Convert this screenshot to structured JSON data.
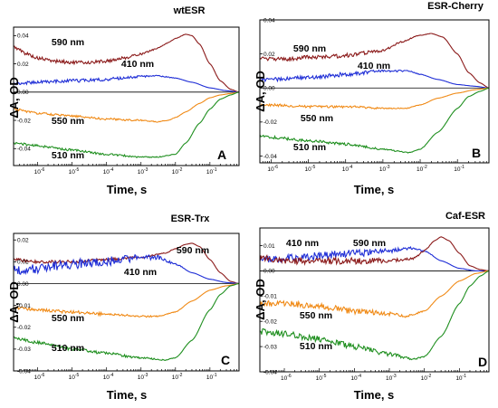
{
  "chart_data": [
    {
      "type": "line",
      "title": "wtESR",
      "panel_letter": "A",
      "xlabel": "Time, s",
      "ylabel": "ΔA, OD",
      "x_scale": "log",
      "xlim": [
        2e-07,
        0.7
      ],
      "ylim": [
        -0.052,
        0.046
      ],
      "yticks": [
        -0.04,
        -0.02,
        0.0,
        0.02,
        0.04
      ],
      "ytick_labels": [
        "-0.04",
        "-0.02",
        "0.00",
        "0.02",
        "0.04"
      ],
      "xtick_labels": [
        "10-6",
        "10-5",
        "10-4",
        "10-3",
        "10-2",
        "10-1"
      ],
      "series": [
        {
          "name": "590 nm",
          "color": "#8b1a1a",
          "noise": 0.0012,
          "x": [
            2e-07,
            5e-07,
            1e-06,
            3e-06,
            1e-05,
            3e-05,
            0.0001,
            0.0003,
            0.001,
            0.003,
            0.006,
            0.01,
            0.02,
            0.03,
            0.05,
            0.1,
            0.2,
            0.4,
            0.7
          ],
          "values": [
            0.032,
            0.027,
            0.024,
            0.022,
            0.021,
            0.021,
            0.022,
            0.024,
            0.027,
            0.031,
            0.035,
            0.038,
            0.041,
            0.04,
            0.034,
            0.02,
            0.008,
            0.002,
            0.0
          ]
        },
        {
          "name": "410 nm",
          "color": "#1f2ed6",
          "noise": 0.0012,
          "x": [
            2e-07,
            1e-06,
            1e-05,
            0.0001,
            0.001,
            0.003,
            0.01,
            0.03,
            0.1,
            0.3,
            0.7
          ],
          "values": [
            0.006,
            0.007,
            0.008,
            0.009,
            0.011,
            0.0115,
            0.01,
            0.007,
            0.003,
            0.001,
            0.0
          ]
        },
        {
          "name": "550 nm",
          "color": "#f08a16",
          "noise": 0.0008,
          "x": [
            2e-07,
            1e-06,
            1e-05,
            0.0001,
            0.001,
            0.003,
            0.006,
            0.01,
            0.02,
            0.05,
            0.1,
            0.2,
            0.4,
            0.7
          ],
          "values": [
            -0.012,
            -0.015,
            -0.017,
            -0.019,
            -0.02,
            -0.021,
            -0.02,
            -0.018,
            -0.014,
            -0.008,
            -0.004,
            -0.002,
            -0.001,
            0.0
          ]
        },
        {
          "name": "510 nm",
          "color": "#1f8f1f",
          "noise": 0.0008,
          "x": [
            2e-07,
            1e-06,
            1e-05,
            0.0001,
            0.001,
            0.003,
            0.01,
            0.02,
            0.05,
            0.1,
            0.2,
            0.4,
            0.7
          ],
          "values": [
            -0.036,
            -0.038,
            -0.041,
            -0.044,
            -0.046,
            -0.046,
            -0.044,
            -0.036,
            -0.022,
            -0.012,
            -0.005,
            -0.002,
            0.0
          ]
        }
      ]
    },
    {
      "type": "line",
      "title": "ESR-Cherry",
      "panel_letter": "B",
      "xlabel": "Time, s",
      "ylabel": "ΔA, OD",
      "x_scale": "log",
      "xlim": [
        5e-07,
        0.7
      ],
      "ylim": [
        -0.044,
        0.04
      ],
      "yticks": [
        -0.04,
        -0.02,
        0.0,
        0.02,
        0.04
      ],
      "ytick_labels": [
        "-0.04",
        "-0.02",
        "0.00",
        "0.02",
        "0.04"
      ],
      "xtick_labels": [
        "10-6",
        "10-5",
        "10-4",
        "10-3",
        "10-2",
        "10-1"
      ],
      "series": [
        {
          "name": "590 nm",
          "color": "#8b1a1a",
          "noise": 0.0012,
          "x": [
            5e-07,
            1e-06,
            3e-06,
            1e-05,
            0.0001,
            0.001,
            0.003,
            0.01,
            0.02,
            0.04,
            0.1,
            0.2,
            0.4,
            0.7
          ],
          "values": [
            0.017,
            0.017,
            0.017,
            0.018,
            0.019,
            0.022,
            0.027,
            0.031,
            0.032,
            0.03,
            0.02,
            0.009,
            0.003,
            0.0
          ]
        },
        {
          "name": "410 nm",
          "color": "#1f2ed6",
          "noise": 0.0012,
          "x": [
            5e-07,
            1e-06,
            1e-05,
            0.0001,
            0.001,
            0.005,
            0.01,
            0.03,
            0.1,
            0.3,
            0.7
          ],
          "values": [
            0.005,
            0.005,
            0.006,
            0.008,
            0.01,
            0.01,
            0.008,
            0.005,
            0.002,
            0.001,
            0.0
          ]
        },
        {
          "name": "550 nm",
          "color": "#f08a16",
          "noise": 0.0007,
          "x": [
            5e-07,
            1e-06,
            1e-05,
            0.0001,
            0.001,
            0.004,
            0.01,
            0.03,
            0.1,
            0.3,
            0.7
          ],
          "values": [
            -0.01,
            -0.01,
            -0.011,
            -0.011,
            -0.012,
            -0.012,
            -0.01,
            -0.006,
            -0.003,
            -0.001,
            0.0
          ]
        },
        {
          "name": "510 nm",
          "color": "#1f8f1f",
          "noise": 0.0008,
          "x": [
            5e-07,
            1e-06,
            1e-05,
            0.0001,
            0.001,
            0.005,
            0.01,
            0.03,
            0.1,
            0.2,
            0.4,
            0.7
          ],
          "values": [
            -0.028,
            -0.029,
            -0.031,
            -0.033,
            -0.036,
            -0.038,
            -0.036,
            -0.026,
            -0.012,
            -0.005,
            -0.002,
            0.0
          ]
        }
      ]
    },
    {
      "type": "line",
      "title": "ESR-Trx",
      "panel_letter": "C",
      "xlabel": "Time, s",
      "ylabel": "ΔA, OD",
      "x_scale": "log",
      "xlim": [
        2e-07,
        0.7
      ],
      "ylim": [
        -0.04,
        0.023
      ],
      "yticks": [
        -0.04,
        -0.03,
        -0.02,
        -0.01,
        0.0,
        0.01,
        0.02
      ],
      "ytick_labels": [
        "-0.04",
        "-0.03",
        "-0.02",
        "-0.01",
        "0.00",
        "0.01",
        "0.02"
      ],
      "xtick_labels": [
        "10-6",
        "10-5",
        "10-4",
        "10-3",
        "10-2",
        "10-1"
      ],
      "series": [
        {
          "name": "590 nm",
          "color": "#8b1a1a",
          "noise": 0.0007,
          "x": [
            2e-07,
            1e-06,
            1e-05,
            0.0001,
            0.001,
            0.005,
            0.01,
            0.02,
            0.03,
            0.05,
            0.1,
            0.2,
            0.4,
            0.7
          ],
          "values": [
            0.011,
            0.01,
            0.01,
            0.011,
            0.012,
            0.014,
            0.016,
            0.018,
            0.0185,
            0.017,
            0.011,
            0.005,
            0.001,
            0.0
          ]
        },
        {
          "name": "410 nm",
          "color": "#1f2ed6",
          "noise": 0.0022,
          "x": [
            2e-07,
            1e-06,
            1e-05,
            0.0001,
            0.001,
            0.003,
            0.01,
            0.03,
            0.1,
            0.3,
            0.7
          ],
          "values": [
            0.006,
            0.007,
            0.009,
            0.01,
            0.012,
            0.012,
            0.009,
            0.005,
            0.002,
            0.0005,
            0.0
          ]
        },
        {
          "name": "550 nm",
          "color": "#f08a16",
          "noise": 0.0007,
          "x": [
            2e-07,
            1e-06,
            1e-05,
            0.0001,
            0.001,
            0.003,
            0.01,
            0.03,
            0.1,
            0.3,
            0.7
          ],
          "values": [
            -0.011,
            -0.012,
            -0.013,
            -0.014,
            -0.015,
            -0.015,
            -0.013,
            -0.008,
            -0.003,
            -0.001,
            0.0
          ]
        },
        {
          "name": "510 nm",
          "color": "#1f8f1f",
          "noise": 0.0007,
          "x": [
            2e-07,
            1e-06,
            1e-05,
            0.0001,
            0.001,
            0.005,
            0.01,
            0.03,
            0.1,
            0.2,
            0.4,
            0.7
          ],
          "values": [
            -0.025,
            -0.027,
            -0.03,
            -0.032,
            -0.034,
            -0.035,
            -0.034,
            -0.026,
            -0.012,
            -0.005,
            -0.001,
            0.0
          ]
        }
      ]
    },
    {
      "type": "line",
      "title": "Caf-ESR",
      "panel_letter": "D",
      "xlabel": "Time, s",
      "ylabel": "ΔA, OD",
      "x_scale": "log",
      "xlim": [
        2e-07,
        0.7
      ],
      "ylim": [
        -0.04,
        0.017
      ],
      "yticks": [
        -0.04,
        -0.03,
        -0.02,
        -0.01,
        0.0,
        0.01
      ],
      "ytick_labels": [
        "-0.04",
        "-0.03",
        "-0.02",
        "-0.01",
        "0.00",
        "0.01"
      ],
      "xtick_labels": [
        "10-6",
        "10-5",
        "10-4",
        "10-3",
        "10-2",
        "10-1"
      ],
      "series": [
        {
          "name": "410 nm",
          "color": "#1f2ed6",
          "noise": 0.0015,
          "x": [
            2e-07,
            1e-06,
            1e-05,
            0.0001,
            0.001,
            0.004,
            0.01,
            0.03,
            0.1,
            0.3,
            0.7
          ],
          "values": [
            0.004,
            0.005,
            0.006,
            0.007,
            0.008,
            0.009,
            0.008,
            0.004,
            0.001,
            0.0,
            0.0
          ]
        },
        {
          "name": "590 nm",
          "color": "#8b1a1a",
          "noise": 0.0013,
          "x": [
            2e-07,
            1e-06,
            1e-05,
            0.0001,
            0.001,
            0.005,
            0.01,
            0.02,
            0.03,
            0.05,
            0.1,
            0.2,
            0.4,
            0.7
          ],
          "values": [
            0.005,
            0.004,
            0.004,
            0.004,
            0.004,
            0.005,
            0.008,
            0.012,
            0.0135,
            0.012,
            0.007,
            0.002,
            0.0005,
            0.0
          ]
        },
        {
          "name": "550 nm",
          "color": "#f08a16",
          "noise": 0.0012,
          "x": [
            2e-07,
            1e-06,
            1e-05,
            0.0001,
            0.001,
            0.003,
            0.01,
            0.03,
            0.1,
            0.3,
            0.7
          ],
          "values": [
            -0.013,
            -0.013,
            -0.014,
            -0.016,
            -0.017,
            -0.018,
            -0.016,
            -0.01,
            -0.004,
            -0.001,
            0.0
          ]
        },
        {
          "name": "510 nm",
          "color": "#1f8f1f",
          "noise": 0.0012,
          "x": [
            2e-07,
            1e-06,
            1e-05,
            0.0001,
            0.001,
            0.005,
            0.01,
            0.03,
            0.1,
            0.2,
            0.4,
            0.7
          ],
          "values": [
            -0.024,
            -0.025,
            -0.027,
            -0.03,
            -0.033,
            -0.035,
            -0.034,
            -0.026,
            -0.013,
            -0.006,
            -0.002,
            0.0
          ]
        }
      ]
    }
  ]
}
